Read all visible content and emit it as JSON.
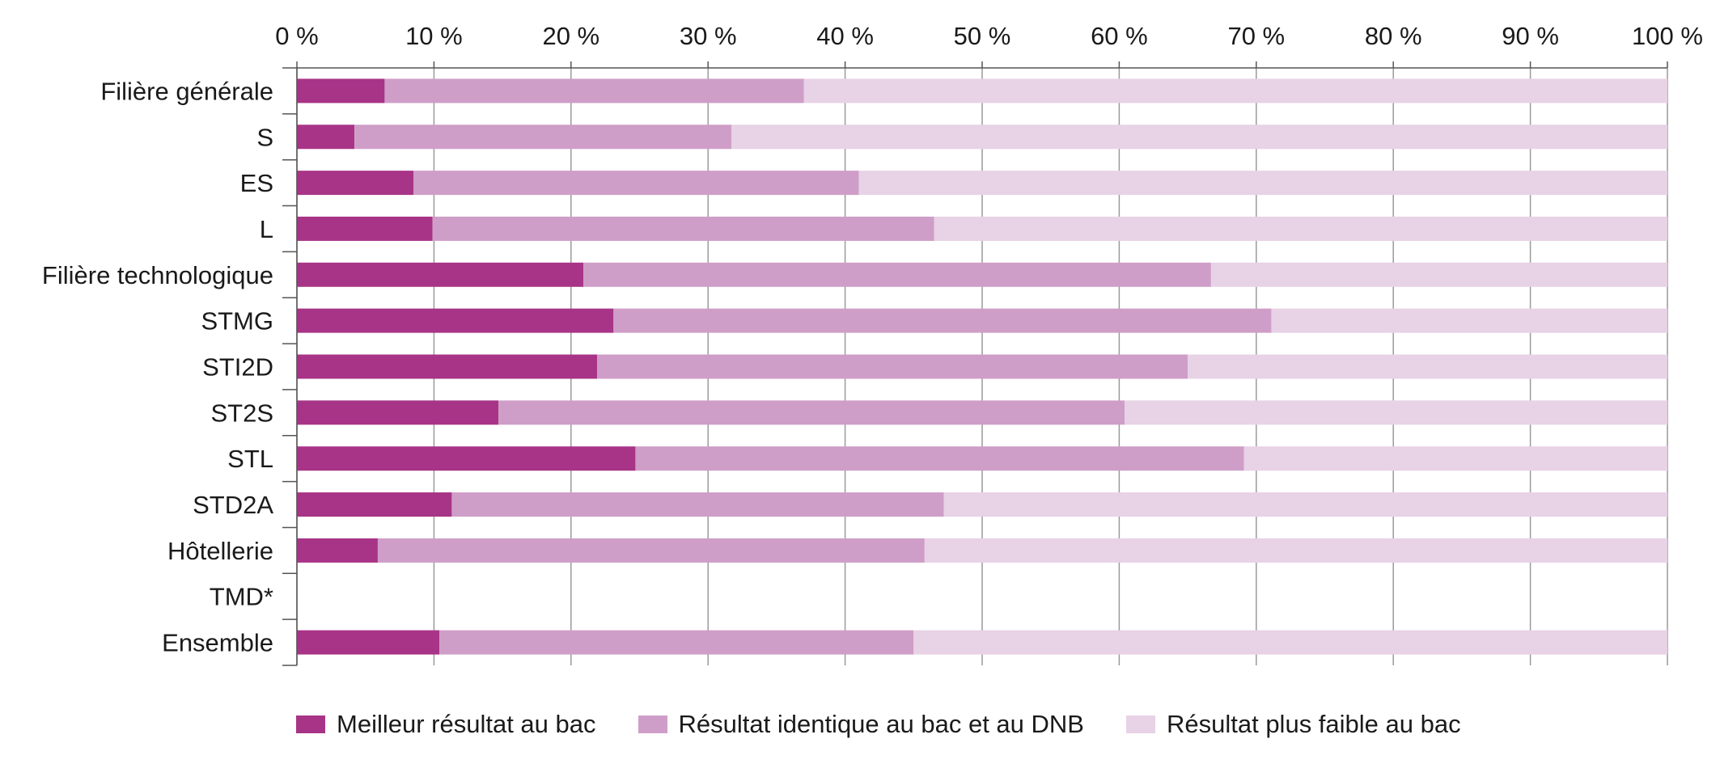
{
  "chart_data": {
    "type": "bar",
    "orientation": "horizontal",
    "stacked": true,
    "categories": [
      "Filière générale",
      "S",
      "ES",
      "L",
      "Filière technologique",
      "STMG",
      "STI2D",
      "ST2S",
      "STL",
      "STD2A",
      "Hôtellerie",
      "TMD*",
      "Ensemble"
    ],
    "series": [
      {
        "name": "Meilleur résultat au bac",
        "color": "#a83487",
        "values": [
          6.4,
          4.2,
          8.5,
          9.9,
          20.9,
          23.1,
          21.9,
          14.7,
          24.7,
          11.3,
          5.9,
          null,
          10.4
        ]
      },
      {
        "name": "Résultat identique au bac et au DNB",
        "color": "#cf9ec8",
        "values": [
          30.6,
          27.5,
          32.5,
          36.6,
          45.8,
          48.0,
          43.1,
          45.7,
          44.4,
          35.9,
          39.9,
          null,
          34.6
        ]
      },
      {
        "name": "Résultat plus faible au bac",
        "color": "#e8d2e6",
        "values": [
          63.0,
          68.3,
          59.0,
          53.5,
          33.3,
          28.9,
          35.0,
          39.6,
          30.9,
          52.8,
          54.2,
          null,
          55.0
        ]
      }
    ],
    "xlim": [
      0,
      100
    ],
    "xticks": [
      "0 %",
      "10 %",
      "20 %",
      "30 %",
      "40 %",
      "50 %",
      "60 %",
      "70 %",
      "80 %",
      "90 %",
      "100 %"
    ],
    "xaxis_position": "top",
    "grid": true,
    "legend_position": "bottom"
  }
}
